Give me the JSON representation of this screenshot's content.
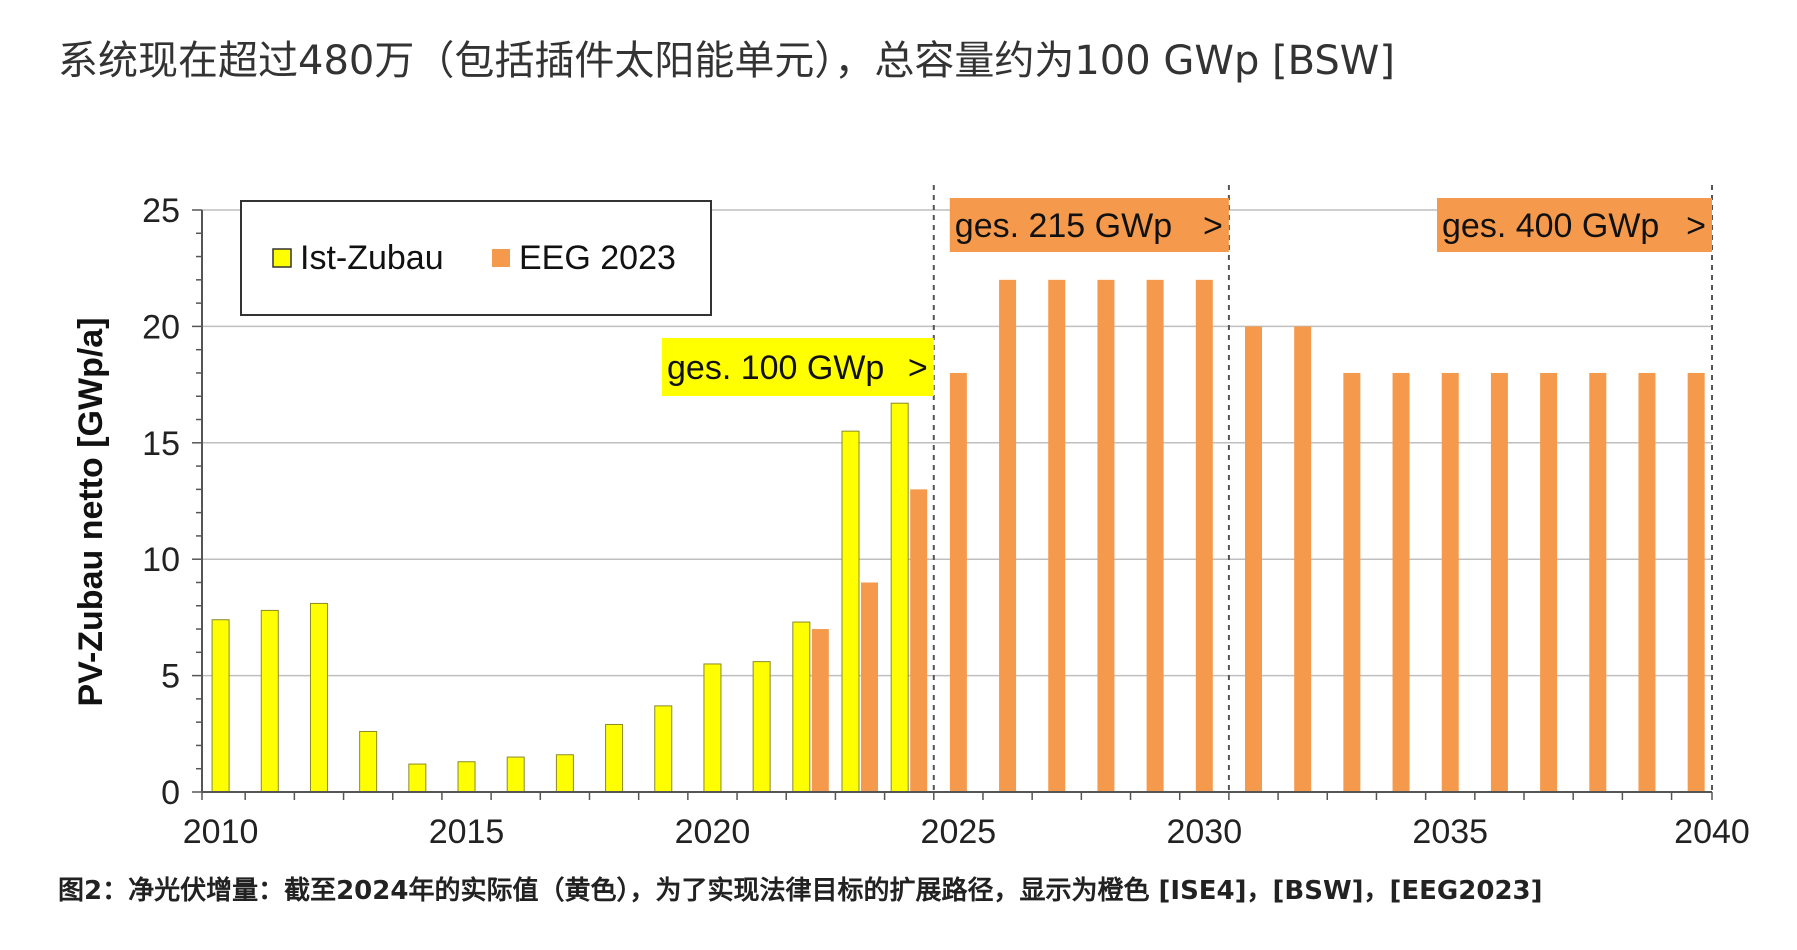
{
  "heading": "系统现在超过480万（包括插件太阳能单元），总容量约为100 GWp [BSW]",
  "caption": "图2：净光伏增量：截至2024年的实际值（黄色），为了实现法律目标的扩展路径，显示为橙色 [ISE4]，[BSW]，[EEG2023]",
  "colors": {
    "ist": "#ffff00",
    "eeg": "#f59a4c",
    "grid": "#bfbfbf",
    "axis": "#555555"
  },
  "chart_data": {
    "type": "bar",
    "title": "",
    "xlabel": "",
    "ylabel": "PV-Zubau netto [GWp/a]",
    "ylim": [
      0,
      25
    ],
    "yticks": [
      "0",
      "5",
      "10",
      "15",
      "20",
      "25"
    ],
    "xticks": [
      "2010",
      "2015",
      "2020",
      "2025",
      "2030",
      "2035",
      "2040"
    ],
    "grid": true,
    "legend_position": "top-left",
    "categories": [
      "2010",
      "2011",
      "2012",
      "2013",
      "2014",
      "2015",
      "2016",
      "2017",
      "2018",
      "2019",
      "2020",
      "2021",
      "2022",
      "2023",
      "2024",
      "2025",
      "2026",
      "2027",
      "2028",
      "2029",
      "2030",
      "2031",
      "2032",
      "2033",
      "2034",
      "2035",
      "2036",
      "2037",
      "2038",
      "2039",
      "2040"
    ],
    "series": [
      {
        "name": "Ist-Zubau",
        "color": "#ffff00",
        "values": [
          7.4,
          7.8,
          8.1,
          2.6,
          1.2,
          1.3,
          1.5,
          1.6,
          2.9,
          3.7,
          5.5,
          5.6,
          7.3,
          15.5,
          16.7,
          null,
          null,
          null,
          null,
          null,
          null,
          null,
          null,
          null,
          null,
          null,
          null,
          null,
          null,
          null,
          null
        ]
      },
      {
        "name": "EEG 2023",
        "color": "#f59a4c",
        "values": [
          null,
          null,
          null,
          null,
          null,
          null,
          null,
          null,
          null,
          null,
          null,
          null,
          7,
          9,
          13,
          18,
          22,
          22,
          22,
          22,
          22,
          20,
          20,
          18,
          18,
          18,
          18,
          18,
          18,
          18,
          18
        ]
      }
    ],
    "annotations": [
      {
        "text": "ges. 100 GWp",
        "arrow": ">",
        "color": "#ffff00"
      },
      {
        "text": "ges. 215 GWp",
        "arrow": ">",
        "color": "#f59a4c"
      },
      {
        "text": "ges. 400 GWp",
        "arrow": ">",
        "color": "#f59a4c"
      }
    ],
    "dividers": [
      "2024/2025",
      "2030/2031",
      "2040"
    ]
  }
}
